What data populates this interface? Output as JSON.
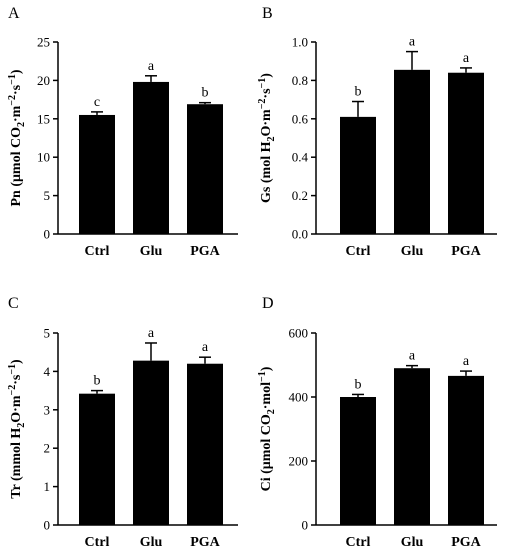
{
  "chart_data": [
    {
      "type": "bar",
      "panel_label": "A",
      "categories": [
        "Ctrl",
        "Glu",
        "PGA"
      ],
      "values": [
        15.5,
        19.8,
        16.9
      ],
      "errors": [
        0.4,
        0.8,
        0.2
      ],
      "significance": [
        "c",
        "a",
        "b"
      ],
      "ylabel": [
        {
          "t": "Pn (μmol CO"
        },
        {
          "t": "2",
          "s": "sub"
        },
        {
          "t": "·m"
        },
        {
          "t": "−2",
          "s": "sup"
        },
        {
          "t": "·s"
        },
        {
          "t": "−1",
          "s": "sup"
        },
        {
          "t": ")"
        }
      ],
      "ylim": [
        0,
        25
      ],
      "yticks": [
        0,
        5,
        10,
        15,
        20,
        25
      ],
      "ytick_labels": [
        "0",
        "5",
        "10",
        "15",
        "20",
        "25"
      ],
      "bar_color": "#000000"
    },
    {
      "type": "bar",
      "panel_label": "B",
      "categories": [
        "Ctrl",
        "Glu",
        "PGA"
      ],
      "values": [
        0.61,
        0.855,
        0.84
      ],
      "errors": [
        0.08,
        0.095,
        0.025
      ],
      "significance": [
        "b",
        "a",
        "a"
      ],
      "ylabel": [
        {
          "t": "Gs (mol H"
        },
        {
          "t": "2",
          "s": "sub"
        },
        {
          "t": "O·m"
        },
        {
          "t": "−2",
          "s": "sup"
        },
        {
          "t": "·s"
        },
        {
          "t": "−1",
          "s": "sup"
        },
        {
          "t": ")"
        }
      ],
      "ylim": [
        0,
        1.0
      ],
      "yticks": [
        0,
        0.2,
        0.4,
        0.6,
        0.8,
        1.0
      ],
      "ytick_labels": [
        "0.0",
        "0.2",
        "0.4",
        "0.6",
        "0.8",
        "1.0"
      ],
      "bar_color": "#000000"
    },
    {
      "type": "bar",
      "panel_label": "C",
      "categories": [
        "Ctrl",
        "Glu",
        "PGA"
      ],
      "values": [
        3.42,
        4.28,
        4.2
      ],
      "errors": [
        0.08,
        0.46,
        0.17
      ],
      "significance": [
        "b",
        "a",
        "a"
      ],
      "ylabel": [
        {
          "t": "Tr (mmol H"
        },
        {
          "t": "2",
          "s": "sub"
        },
        {
          "t": "O·m"
        },
        {
          "t": "−2",
          "s": "sup"
        },
        {
          "t": "·s"
        },
        {
          "t": "−1",
          "s": "sup"
        },
        {
          "t": ")"
        }
      ],
      "ylim": [
        0,
        5
      ],
      "yticks": [
        0,
        1,
        2,
        3,
        4,
        5
      ],
      "ytick_labels": [
        "0",
        "1",
        "2",
        "3",
        "4",
        "5"
      ],
      "bar_color": "#000000"
    },
    {
      "type": "bar",
      "panel_label": "D",
      "categories": [
        "Ctrl",
        "Glu",
        "PGA"
      ],
      "values": [
        400,
        490,
        466
      ],
      "errors": [
        8,
        8,
        15
      ],
      "significance": [
        "b",
        "a",
        "a"
      ],
      "ylabel": [
        {
          "t": "Ci (μmol CO"
        },
        {
          "t": "2",
          "s": "sub"
        },
        {
          "t": "·mol"
        },
        {
          "t": "−1",
          "s": "sup"
        },
        {
          "t": ")"
        }
      ],
      "ylim": [
        0,
        600
      ],
      "yticks": [
        0,
        200,
        400,
        600
      ],
      "ytick_labels": [
        "0",
        "200",
        "400",
        "600"
      ],
      "bar_color": "#000000"
    }
  ]
}
